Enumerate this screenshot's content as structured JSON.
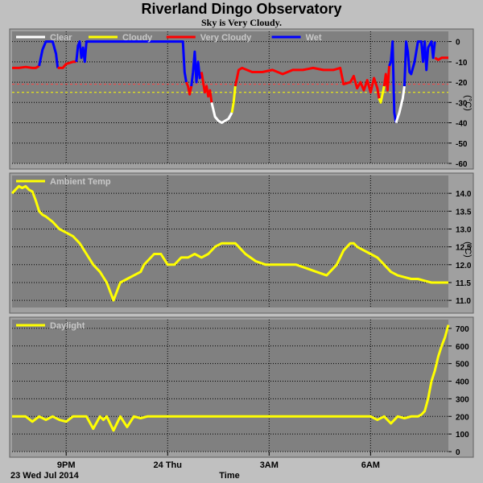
{
  "title": "Riverland Dingo Observatory",
  "subtitle": "Sky is Very Cloudy.",
  "date_label": "23 Wed Jul 2014",
  "colors": {
    "panel_bg": "#808080",
    "page_bg": "#c0c0c0",
    "grid": "#000000",
    "clear": "#ffffff",
    "cloudy": "#ffff00",
    "very_cloudy": "#ff0000",
    "wet": "#0000ff",
    "daylight": "#ffff00",
    "ambient": "#ffff00",
    "threshold_red": "#ff4040",
    "threshold_yellow": "#ffff00"
  },
  "chart_data": [
    {
      "type": "line",
      "name": "sky",
      "legend": [
        {
          "label": "Clear",
          "color": "#ffffff"
        },
        {
          "label": "Cloudy",
          "color": "#ffff00"
        },
        {
          "label": "Very Cloudy",
          "color": "#ff0000"
        },
        {
          "label": "Wet",
          "color": "#0000ff"
        }
      ],
      "ylabel": "(°C)",
      "ylim": [
        -60,
        5
      ],
      "yticks": [
        0,
        -10,
        -20,
        -30,
        -40,
        -50,
        -60
      ],
      "thresholds": [
        -21,
        -25
      ],
      "xlim": [
        -1.6,
        11.3
      ],
      "segments": [
        {
          "state": "very_cloudy",
          "x": [
            -1.6,
            -1.4,
            -1.2,
            -1.0,
            -0.9,
            -0.8
          ],
          "y": [
            -13,
            -13,
            -12.5,
            -13,
            -13,
            -12
          ]
        },
        {
          "state": "wet",
          "x": [
            -0.8,
            -0.7,
            -0.6,
            -0.4,
            -0.3,
            -0.25
          ],
          "y": [
            -12,
            -4,
            0,
            0,
            -6,
            -13
          ]
        },
        {
          "state": "very_cloudy",
          "x": [
            -0.25,
            -0.1,
            0.0,
            0.2,
            0.3
          ],
          "y": [
            -13,
            -13,
            -11,
            -10,
            -10
          ]
        },
        {
          "state": "wet",
          "x": [
            0.3,
            0.35,
            0.4,
            0.45,
            0.5,
            0.55,
            0.6,
            0.8,
            1.0,
            1.5,
            2.0,
            2.5,
            3.0,
            3.3,
            3.45,
            3.5,
            3.55
          ],
          "y": [
            -10,
            -2,
            0,
            -8,
            -3,
            -10,
            0,
            0,
            0,
            0,
            0,
            0,
            0,
            0,
            0,
            -15,
            -20
          ]
        },
        {
          "state": "very_cloudy",
          "x": [
            3.55,
            3.6,
            3.65,
            3.7
          ],
          "y": [
            -20,
            -22,
            -26,
            -22
          ]
        },
        {
          "state": "wet",
          "x": [
            3.7,
            3.75,
            3.8,
            3.85,
            3.9,
            3.95,
            4.0
          ],
          "y": [
            -22,
            -15,
            -5,
            -20,
            -10,
            -18,
            -15
          ]
        },
        {
          "state": "very_cloudy",
          "x": [
            4.0,
            4.05,
            4.1,
            4.15,
            4.2,
            4.25,
            4.3
          ],
          "y": [
            -15,
            -20,
            -25,
            -22,
            -27,
            -24,
            -30
          ]
        },
        {
          "state": "clear",
          "x": [
            4.3,
            4.4,
            4.5,
            4.6,
            4.7,
            4.8,
            4.9
          ],
          "y": [
            -30,
            -37,
            -39,
            -40,
            -39,
            -38,
            -35
          ]
        },
        {
          "state": "cloudy",
          "x": [
            4.9,
            4.95,
            5.0
          ],
          "y": [
            -35,
            -30,
            -22
          ]
        },
        {
          "state": "very_cloudy",
          "x": [
            5.0,
            5.1,
            5.2,
            5.5,
            5.8,
            6.1,
            6.4,
            6.7,
            7.0,
            7.3,
            7.6,
            7.9,
            8.1,
            8.2,
            8.4,
            8.5,
            8.6,
            8.7,
            8.8,
            8.9,
            9.0,
            9.1,
            9.2,
            9.25
          ],
          "y": [
            -22,
            -14,
            -13,
            -15,
            -15,
            -14,
            -16,
            -14,
            -14,
            -13,
            -14,
            -14,
            -13,
            -21,
            -20,
            -17,
            -23,
            -20,
            -24,
            -19,
            -25,
            -18,
            -23,
            -28
          ]
        },
        {
          "state": "cloudy",
          "x": [
            9.25,
            9.3,
            9.35,
            9.4
          ],
          "y": [
            -28,
            -30,
            -26,
            -22
          ]
        },
        {
          "state": "very_cloudy",
          "x": [
            9.4,
            9.45,
            9.5,
            9.55
          ],
          "y": [
            -22,
            -16,
            -24,
            -12
          ]
        },
        {
          "state": "wet",
          "x": [
            9.55,
            9.6,
            9.65,
            9.7,
            9.75
          ],
          "y": [
            -12,
            -10,
            0,
            -35,
            -40
          ]
        },
        {
          "state": "clear",
          "x": [
            9.75,
            9.85,
            9.95,
            10.0
          ],
          "y": [
            -40,
            -35,
            -28,
            -22
          ]
        },
        {
          "state": "wet",
          "x": [
            10.0,
            10.05,
            10.1,
            10.15,
            10.2,
            10.3,
            10.4,
            10.45,
            10.5,
            10.55,
            10.6,
            10.65,
            10.7,
            10.8,
            10.85,
            10.9
          ],
          "y": [
            -22,
            0,
            -5,
            -15,
            -16,
            -10,
            0,
            0,
            0,
            -10,
            0,
            -14,
            -3,
            0,
            -8,
            0
          ]
        },
        {
          "state": "very_cloudy",
          "x": [
            10.9,
            11.0,
            11.1,
            11.3
          ],
          "y": [
            -8,
            -9,
            -8,
            -8
          ]
        }
      ]
    },
    {
      "type": "line",
      "name": "ambient",
      "legend": [
        {
          "label": "Ambient Temp",
          "color": "#ffff00"
        }
      ],
      "ylabel": "(°C)",
      "ylim": [
        10.8,
        14.5
      ],
      "yticks": [
        14.0,
        13.5,
        13.0,
        12.5,
        12.0,
        11.5,
        11.0
      ],
      "xlim": [
        -1.6,
        11.3
      ],
      "series": [
        {
          "x": [
            -1.6,
            -1.5,
            -1.4,
            -1.3,
            -1.2,
            -1.1,
            -1.0,
            -0.9,
            -0.8,
            -0.7,
            -0.6,
            -0.4,
            -0.2,
            0.0,
            0.2,
            0.4,
            0.6,
            0.8,
            1.0,
            1.2,
            1.4,
            1.6,
            1.8,
            2.0,
            2.2,
            2.3,
            2.4,
            2.6,
            2.8,
            3.0,
            3.2,
            3.4,
            3.6,
            3.8,
            4.0,
            4.2,
            4.4,
            4.6,
            4.8,
            5.0,
            5.3,
            5.6,
            5.9,
            6.2,
            6.5,
            6.8,
            7.1,
            7.4,
            7.7,
            8.0,
            8.2,
            8.4,
            8.5,
            8.6,
            8.8,
            9.0,
            9.2,
            9.4,
            9.6,
            9.8,
            10.0,
            10.2,
            10.4,
            10.6,
            10.8,
            11.0,
            11.3
          ],
          "y": [
            14.0,
            14.1,
            14.2,
            14.15,
            14.2,
            14.1,
            14.05,
            13.8,
            13.5,
            13.4,
            13.35,
            13.2,
            13.0,
            12.9,
            12.8,
            12.6,
            12.3,
            12.0,
            11.8,
            11.5,
            11.0,
            11.5,
            11.6,
            11.7,
            11.8,
            12.0,
            12.1,
            12.3,
            12.3,
            12.0,
            12.0,
            12.2,
            12.2,
            12.3,
            12.2,
            12.3,
            12.5,
            12.6,
            12.6,
            12.6,
            12.3,
            12.1,
            12.0,
            12.0,
            12.0,
            12.0,
            11.9,
            11.8,
            11.7,
            12.0,
            12.4,
            12.6,
            12.6,
            12.5,
            12.4,
            12.3,
            12.2,
            12.0,
            11.8,
            11.7,
            11.65,
            11.6,
            11.6,
            11.55,
            11.5,
            11.5,
            11.5
          ]
        }
      ]
    },
    {
      "type": "line",
      "name": "daylight",
      "legend": [
        {
          "label": "Daylight",
          "color": "#ffff00"
        }
      ],
      "ylim": [
        0,
        750
      ],
      "yticks": [
        700,
        600,
        500,
        400,
        300,
        200,
        100,
        0
      ],
      "xlim": [
        -1.6,
        11.3
      ],
      "xticks": [
        {
          "x": 0,
          "label": "9PM"
        },
        {
          "x": 3,
          "label": "24 Thu"
        },
        {
          "x": 6,
          "label": "3AM"
        },
        {
          "x": 9,
          "label": "6AM"
        }
      ],
      "xlabel": "Time",
      "series": [
        {
          "x": [
            -1.6,
            -1.2,
            -1.0,
            -0.8,
            -0.6,
            -0.4,
            -0.2,
            0.0,
            0.2,
            0.4,
            0.6,
            0.8,
            1.0,
            1.1,
            1.2,
            1.4,
            1.6,
            1.8,
            2.0,
            2.2,
            2.4,
            2.6,
            2.8,
            3.0,
            3.5,
            4.0,
            5.0,
            6.0,
            7.0,
            8.0,
            9.0,
            9.2,
            9.4,
            9.6,
            9.8,
            10.0,
            10.2,
            10.4,
            10.5,
            10.6,
            10.7,
            10.8,
            10.9,
            11.0,
            11.1,
            11.2,
            11.3
          ],
          "y": [
            200,
            200,
            170,
            200,
            180,
            200,
            180,
            170,
            200,
            200,
            200,
            130,
            200,
            180,
            200,
            120,
            200,
            140,
            200,
            190,
            200,
            200,
            200,
            200,
            200,
            200,
            200,
            200,
            200,
            200,
            200,
            180,
            200,
            160,
            200,
            190,
            200,
            200,
            210,
            230,
            300,
            400,
            460,
            540,
            600,
            650,
            720
          ]
        }
      ]
    }
  ]
}
